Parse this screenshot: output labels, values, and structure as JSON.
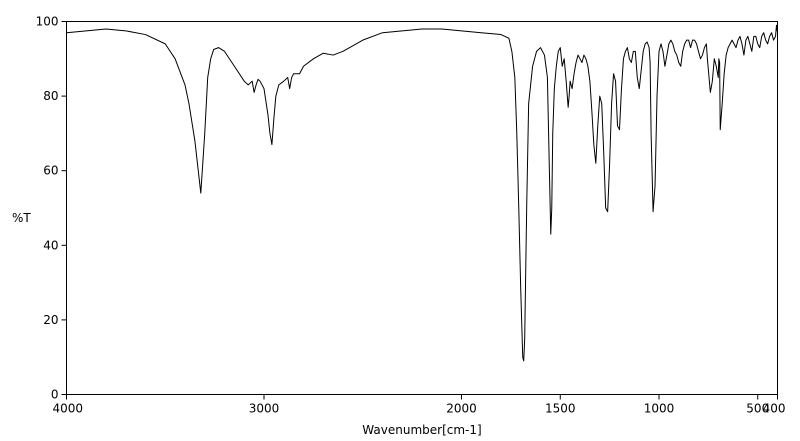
{
  "chart_data": {
    "type": "line",
    "title": "",
    "xlabel": "Wavenumber[cm-1]",
    "ylabel": "%T",
    "xlim": [
      4000,
      400
    ],
    "ylim": [
      0,
      100
    ],
    "x_reversed": true,
    "grid": false,
    "x_ticks": [
      4000,
      3000,
      2000,
      1500,
      1000,
      500,
      400
    ],
    "x_tick_labels": [
      "4000",
      "3000",
      "2000",
      "1500",
      "1000",
      "500",
      "400"
    ],
    "y_ticks": [
      0,
      20,
      40,
      60,
      80,
      100
    ],
    "y_tick_labels": [
      "0",
      "20",
      "40",
      "60",
      "80",
      "100"
    ],
    "series": [
      {
        "x": [
          4000,
          3900,
          3800,
          3700,
          3600,
          3500,
          3450,
          3400,
          3380,
          3350,
          3320,
          3300,
          3285,
          3270,
          3255,
          3230,
          3200,
          3150,
          3100,
          3080,
          3060,
          3050,
          3040,
          3030,
          3020,
          3000,
          2980,
          2970,
          2960,
          2950,
          2940,
          2925,
          2900,
          2880,
          2870,
          2860,
          2850,
          2820,
          2800,
          2750,
          2700,
          2650,
          2600,
          2500,
          2400,
          2300,
          2200,
          2100,
          2000,
          1900,
          1800,
          1760,
          1745,
          1730,
          1720,
          1710,
          1700,
          1690,
          1685,
          1680,
          1670,
          1660,
          1640,
          1620,
          1600,
          1580,
          1565,
          1555,
          1548,
          1543,
          1538,
          1530,
          1520,
          1510,
          1500,
          1490,
          1480,
          1470,
          1460,
          1455,
          1450,
          1440,
          1430,
          1420,
          1410,
          1400,
          1390,
          1380,
          1370,
          1360,
          1350,
          1340,
          1330,
          1320,
          1310,
          1300,
          1290,
          1280,
          1270,
          1260,
          1250,
          1240,
          1230,
          1220,
          1210,
          1200,
          1190,
          1180,
          1170,
          1160,
          1150,
          1140,
          1130,
          1120,
          1110,
          1100,
          1080,
          1070,
          1060,
          1050,
          1045,
          1040,
          1030,
          1020,
          1010,
          1000,
          990,
          980,
          970,
          960,
          950,
          940,
          930,
          920,
          910,
          900,
          890,
          880,
          870,
          860,
          850,
          840,
          830,
          820,
          810,
          800,
          790,
          780,
          770,
          760,
          755,
          750,
          740,
          730,
          720,
          710,
          700,
          697,
          693,
          690,
          680,
          670,
          660,
          650,
          640,
          630,
          620,
          610,
          600,
          590,
          580,
          570,
          560,
          550,
          540,
          530,
          520,
          510,
          500,
          490,
          480,
          470,
          460,
          450,
          440,
          430,
          420,
          410,
          405,
          400
        ],
        "y": [
          97,
          97.5,
          98,
          97.5,
          96.5,
          94,
          90,
          83,
          78,
          68,
          54,
          70,
          85,
          90,
          92.5,
          93,
          92,
          88,
          84,
          83,
          84,
          81,
          83,
          84.5,
          84,
          82,
          75,
          70,
          67,
          74,
          80,
          83,
          84,
          85,
          82,
          85,
          86,
          86,
          88,
          90,
          91.5,
          91,
          92,
          95,
          97,
          97.5,
          98,
          98,
          97.5,
          97,
          96.5,
          95.5,
          92,
          85,
          70,
          50,
          28,
          10,
          9,
          15,
          50,
          78,
          88,
          92,
          93,
          91,
          85,
          60,
          43,
          50,
          70,
          82,
          88,
          92,
          93,
          88,
          90,
          84,
          77,
          80,
          84,
          82,
          86,
          89,
          91,
          90,
          89,
          91,
          90,
          88,
          84,
          76,
          67,
          62,
          72,
          80,
          78,
          65,
          50,
          49,
          62,
          78,
          86,
          84,
          72,
          71,
          82,
          90,
          92,
          93,
          90,
          89,
          92,
          92,
          85,
          82,
          92,
          94,
          94.5,
          93,
          89,
          70,
          49,
          56,
          80,
          92,
          94,
          92,
          88,
          91,
          94,
          95,
          94,
          92,
          91,
          89,
          88,
          92,
          94,
          95,
          95,
          93,
          95,
          95,
          94,
          92,
          90,
          91,
          93,
          94,
          90,
          87,
          81,
          84,
          90,
          88,
          85,
          90,
          89,
          71,
          78,
          86,
          91,
          93,
          94,
          95,
          94,
          93,
          95,
          96,
          94,
          91,
          95,
          96,
          94,
          92,
          96,
          96,
          94,
          93,
          96,
          97,
          95,
          94,
          96,
          97,
          95,
          96,
          99,
          97
        ]
      }
    ]
  }
}
